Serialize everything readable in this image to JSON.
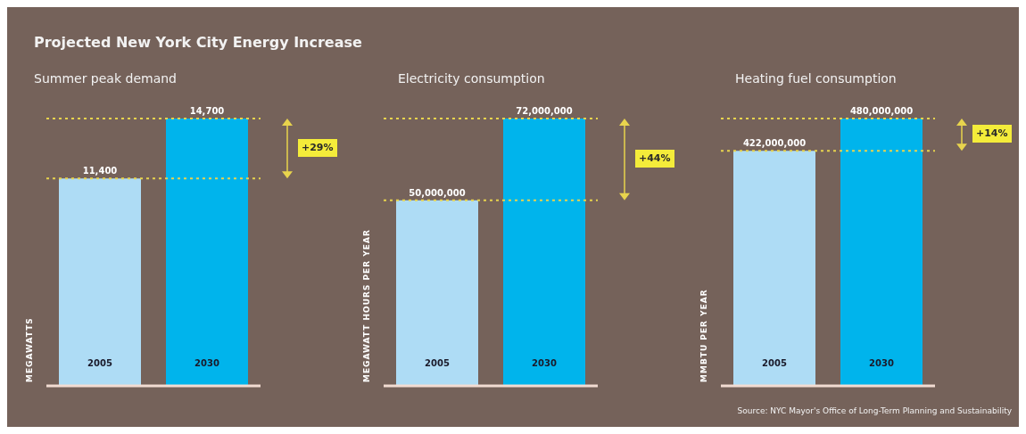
{
  "chart_data": [
    {
      "type": "bar",
      "title": "Projected New York City Energy Increase",
      "subtitle": "Summer peak demand",
      "ylabel": "MEGAWATTS",
      "categories": [
        "2005",
        "2030"
      ],
      "values": [
        11400,
        14700
      ],
      "colors": [
        "#aedcf5",
        "#00b4ec"
      ],
      "value_labels": [
        "11,400",
        "14,700"
      ],
      "ref_lines": [
        {
          "axis": "y",
          "value": 11400,
          "color": "#e8d44d",
          "line_style": "dotted"
        },
        {
          "axis": "y",
          "value": 14700,
          "color": "#e8d44d",
          "line_style": "dotted"
        }
      ],
      "annotations": [
        "+29%"
      ]
    },
    {
      "type": "bar",
      "subtitle": "Electricity consumption",
      "ylabel": "MEGAWATT HOURS PER YEAR",
      "categories": [
        "2005",
        "2030"
      ],
      "values": [
        50000000,
        72000000
      ],
      "colors": [
        "#aedcf5",
        "#00b4ec"
      ],
      "value_labels": [
        "50,000,000",
        "72,000,000"
      ],
      "ref_lines": [
        {
          "axis": "y",
          "value": 50000000,
          "color": "#e8d44d",
          "line_style": "dotted"
        },
        {
          "axis": "y",
          "value": 72000000,
          "color": "#e8d44d",
          "line_style": "dotted"
        }
      ],
      "annotations": [
        "+44%"
      ]
    },
    {
      "type": "bar",
      "subtitle": "Heating fuel consumption",
      "ylabel": "MMBTU PER YEAR",
      "categories": [
        "2005",
        "2030"
      ],
      "values": [
        422000000,
        480000000
      ],
      "colors": [
        "#aedcf5",
        "#00b4ec"
      ],
      "value_labels": [
        "422,000,000",
        "480,000,000"
      ],
      "ref_lines": [
        {
          "axis": "y",
          "value": 422000000,
          "color": "#e8d44d",
          "line_style": "dotted"
        },
        {
          "axis": "y",
          "value": 480000000,
          "color": "#e8d44d",
          "line_style": "dotted"
        }
      ],
      "annotations": [
        "+14%",
        "Source: NYC Mayor's Office of Long-Term Planning and Sustainability"
      ]
    }
  ]
}
